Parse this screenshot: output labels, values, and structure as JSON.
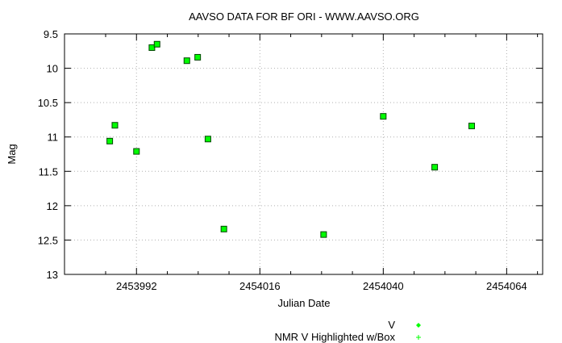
{
  "chart_data": {
    "type": "scatter",
    "title": "AAVSO DATA FOR BF ORI - WWW.AAVSO.ORG",
    "xlabel": "Julian Date",
    "ylabel": "Mag",
    "xlim": [
      2453978,
      2454071
    ],
    "ylim": [
      9.5,
      13
    ],
    "y_inverted": true,
    "grid": true,
    "x_ticks": [
      2453992,
      2454016,
      2454040,
      2454064
    ],
    "x_tick_labels": [
      "2453992",
      "2454016",
      "2454040",
      "2454064"
    ],
    "x_minor_ticks": [
      2453986,
      2453998,
      2454004,
      2454010,
      2454022,
      2454028,
      2454034,
      2454046,
      2454052,
      2454058,
      2454070
    ],
    "y_ticks": [
      9.5,
      10,
      10.5,
      11,
      11.5,
      12,
      12.5,
      13
    ],
    "y_tick_labels": [
      "9.5",
      "10",
      "10.5",
      "11",
      "11.5",
      "12",
      "12.5",
      "13"
    ],
    "legend_position": "bottom-center",
    "series": [
      {
        "name": "V",
        "color": "#00ff00",
        "marker": "diamond",
        "x": [
          2453986.8,
          2453987.8,
          2453992.0,
          2453995.0,
          2453996.0,
          2454001.8,
          2454003.9,
          2454005.9,
          2454009.0,
          2454028.4,
          2454040.0,
          2454050.0,
          2454057.2
        ],
        "y": [
          11.06,
          10.83,
          11.21,
          9.7,
          9.65,
          9.89,
          9.84,
          11.03,
          12.34,
          12.42,
          10.7,
          11.44,
          10.84
        ]
      },
      {
        "name": "NMR V Highlighted w/Box",
        "color": "#00ff00",
        "marker": "plus",
        "x": [],
        "y": []
      }
    ]
  }
}
